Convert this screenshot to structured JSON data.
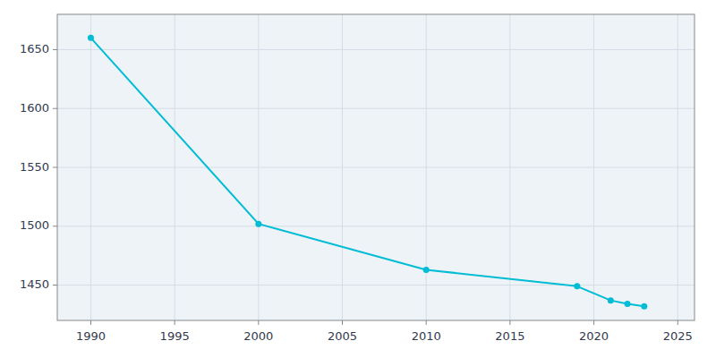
{
  "chart_data": {
    "type": "line",
    "x": [
      1990,
      2000,
      2010,
      2019,
      2021,
      2022,
      2023
    ],
    "values": [
      1660,
      1502,
      1463,
      1449,
      1437,
      1434,
      1432
    ],
    "color": "#00BCD4",
    "marker": "circle",
    "xlim": [
      1988,
      2026
    ],
    "ylim": [
      1420,
      1680
    ],
    "xticks": [
      1990,
      1995,
      2000,
      2005,
      2010,
      2015,
      2020,
      2025
    ],
    "yticks": [
      1450,
      1500,
      1550,
      1600,
      1650
    ],
    "grid": true
  }
}
